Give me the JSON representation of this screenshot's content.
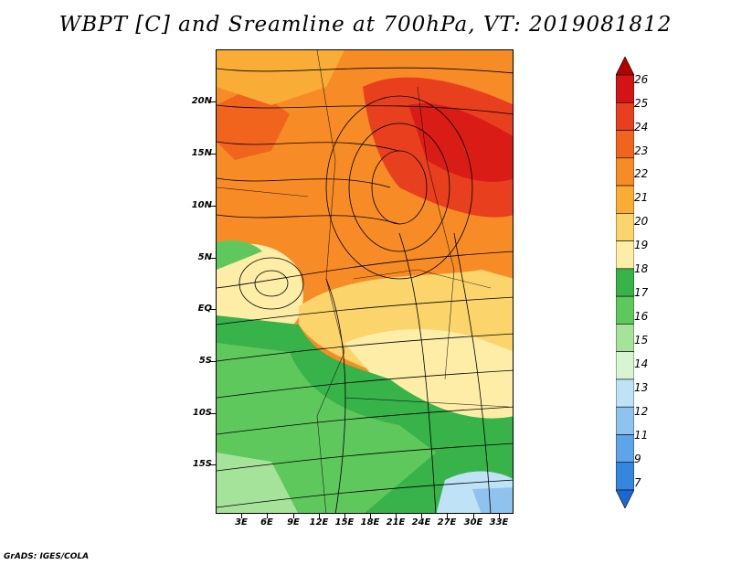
{
  "title": "WBPT [C] and Sreamline at 700hPa, VT: 2019081812",
  "footer": "GrADS: IGES/COLA",
  "map": {
    "lat_labels": [
      "20N",
      "15N",
      "10N",
      "5N",
      "EQ",
      "5S",
      "10S",
      "15S"
    ],
    "lon_labels": [
      "3E",
      "6E",
      "9E",
      "12E",
      "15E",
      "18E",
      "21E",
      "24E",
      "27E",
      "30E",
      "33E"
    ]
  },
  "colorbar": {
    "labels": [
      "26",
      "25",
      "24",
      "23",
      "22",
      "21",
      "20",
      "19",
      "18",
      "17",
      "16",
      "15",
      "14",
      "13",
      "12",
      "11",
      "9",
      "7"
    ],
    "colors": [
      "#b30000",
      "#d41414",
      "#e8401e",
      "#f0641e",
      "#f78c26",
      "#f9ad36",
      "#fbd46c",
      "#fdeda6",
      "#37b34a",
      "#5fc85c",
      "#a6e39a",
      "#d8f5d2",
      "#bfe2f7",
      "#8ec3f0",
      "#5da4e8",
      "#3486de",
      "#1c66d4"
    ]
  }
}
